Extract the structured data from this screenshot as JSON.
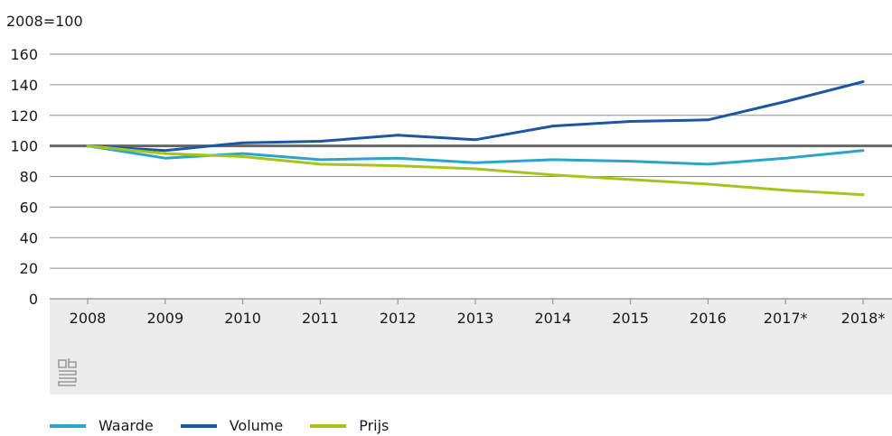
{
  "chart_data": {
    "type": "line",
    "unit_label": "2008=100",
    "categories": [
      "2008",
      "2009",
      "2010",
      "2011",
      "2012",
      "2013",
      "2014",
      "2015",
      "2016",
      "2017*",
      "2018*"
    ],
    "series": [
      {
        "name": "Waarde",
        "color": "#2aa5c9",
        "values": [
          100,
          92,
          95,
          91,
          92,
          89,
          91,
          90,
          88,
          92,
          97
        ]
      },
      {
        "name": "Volume",
        "color": "#1b57a3",
        "values": [
          100,
          97,
          102,
          103,
          107,
          104,
          113,
          116,
          117,
          129,
          142
        ]
      },
      {
        "name": "Prijs",
        "color": "#a6c51a",
        "values": [
          100,
          95,
          93,
          88,
          87,
          85,
          81,
          78,
          75,
          71,
          68
        ]
      }
    ],
    "ylim": [
      0,
      160
    ],
    "yticks": [
      0,
      20,
      40,
      60,
      80,
      100,
      120,
      140,
      160
    ],
    "reference_line": 100,
    "grid": true,
    "legend_position": "bottom-left"
  },
  "colors": {
    "grid": "#8c8c8c",
    "reference": "#666666",
    "footer_band": "#ececec"
  },
  "logo_icon": "cbs-logo-icon"
}
